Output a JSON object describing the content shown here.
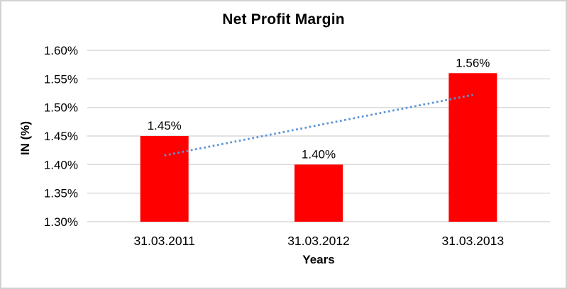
{
  "chart_data": {
    "type": "bar",
    "title": "Net Profit Margin",
    "categories": [
      "31.03.2011",
      "31.03.2012",
      "31.03.2013"
    ],
    "values": [
      1.45,
      1.4,
      1.56
    ],
    "data_labels": [
      "1.45%",
      "1.40%",
      "1.56%"
    ],
    "xlabel": "Years",
    "ylabel": "IN (%)",
    "ylim": [
      1.3,
      1.6
    ],
    "ytick_step": 0.05,
    "ytick_labels": [
      "1.30%",
      "1.35%",
      "1.40%",
      "1.45%",
      "1.50%",
      "1.55%",
      "1.60%"
    ],
    "grid": true,
    "legend": "none",
    "bar_color": "#ff0000",
    "gridline_color": "#d9d9d9",
    "text_color": "#000000",
    "frame_border_color": "#d2d2d2",
    "trendline": {
      "type": "linear",
      "style": "dotted",
      "color": "#5b94d6",
      "start_value": 1.416,
      "end_value": 1.522
    }
  }
}
